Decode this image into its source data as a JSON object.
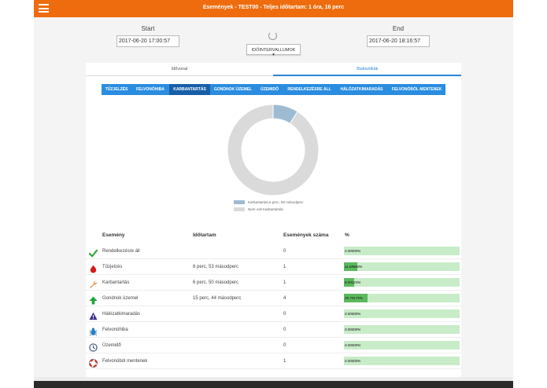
{
  "header": {
    "title": "Események - TEST00 - Teljes időtartam: 1 óra, 16 perc"
  },
  "range": {
    "start_label": "Start",
    "start_value": "2017-06-20 17:00:57",
    "end_label": "End",
    "end_value": "2017-06-20 18:16:57",
    "dropdown_label": "IDŐINTERVALLUMOK ▾"
  },
  "tabs": [
    {
      "label": "Idővonal",
      "active": false
    },
    {
      "label": "Statisztikák",
      "active": true
    }
  ],
  "categories": [
    {
      "label": "TŰZJELZÉS",
      "active": false
    },
    {
      "label": "FELVONÓHIBA",
      "active": false
    },
    {
      "label": "KARBANTARTÁS",
      "active": true
    },
    {
      "label": "GONDNOK ÜZEMEL",
      "active": false
    },
    {
      "label": "ÜZEMIDŐ",
      "active": false
    },
    {
      "label": "RENDELKEZÉSRE ÁLL",
      "active": false
    },
    {
      "label": "HÁLÓZATKIMARADÁS",
      "active": false
    },
    {
      "label": "FELVONÓBÓL MENTENEK",
      "active": false
    }
  ],
  "chart_data": {
    "type": "pie",
    "series": [
      {
        "name": "Karbantartás,6 perc, 50 másodperc",
        "value": 8.99,
        "color": "#9dbcd4"
      },
      {
        "name": "Nem volt Karbantartás",
        "value": 91.01,
        "color": "#dadada"
      }
    ]
  },
  "table": {
    "headers": [
      "Esemény",
      "Időtartam",
      "Események száma",
      "%"
    ],
    "rows": [
      {
        "icon": "check-icon",
        "name": "Rendelkezésre áll",
        "duration": "",
        "count": "0",
        "percent": 0,
        "percent_label": "0.00000%"
      },
      {
        "icon": "fire-icon",
        "name": "Tűzjelzés",
        "duration": "8 perc, 53 másodperc",
        "count": "1",
        "percent": 11.6965,
        "percent_label": "11.69660%"
      },
      {
        "icon": "wrench-icon",
        "name": "Karbantartás",
        "duration": "6 perc, 50 másodperc",
        "count": "1",
        "percent": 8.9912,
        "percent_label": "8.99123%"
      },
      {
        "icon": "arrow-up-icon",
        "name": "Gondnok üzemel",
        "duration": "15 perc, 44 másodperc",
        "count": "4",
        "percent": 20.7017,
        "percent_label": "20.70175%"
      },
      {
        "icon": "warning-icon",
        "name": "Hálózatkimaradás",
        "duration": "",
        "count": "0",
        "percent": 0,
        "percent_label": "0.00000%"
      },
      {
        "icon": "bug-icon",
        "name": "Felvonóhiba",
        "duration": "",
        "count": "0",
        "percent": 0,
        "percent_label": "0.00000%"
      },
      {
        "icon": "clock-icon",
        "name": "Üzemidő",
        "duration": "",
        "count": "0",
        "percent": 0,
        "percent_label": "0.00000%"
      },
      {
        "icon": "lifebuoy-icon",
        "name": "Felvonóból mentenek",
        "duration": "",
        "count": "1",
        "percent": 0,
        "percent_label": "0.00000%"
      }
    ]
  }
}
